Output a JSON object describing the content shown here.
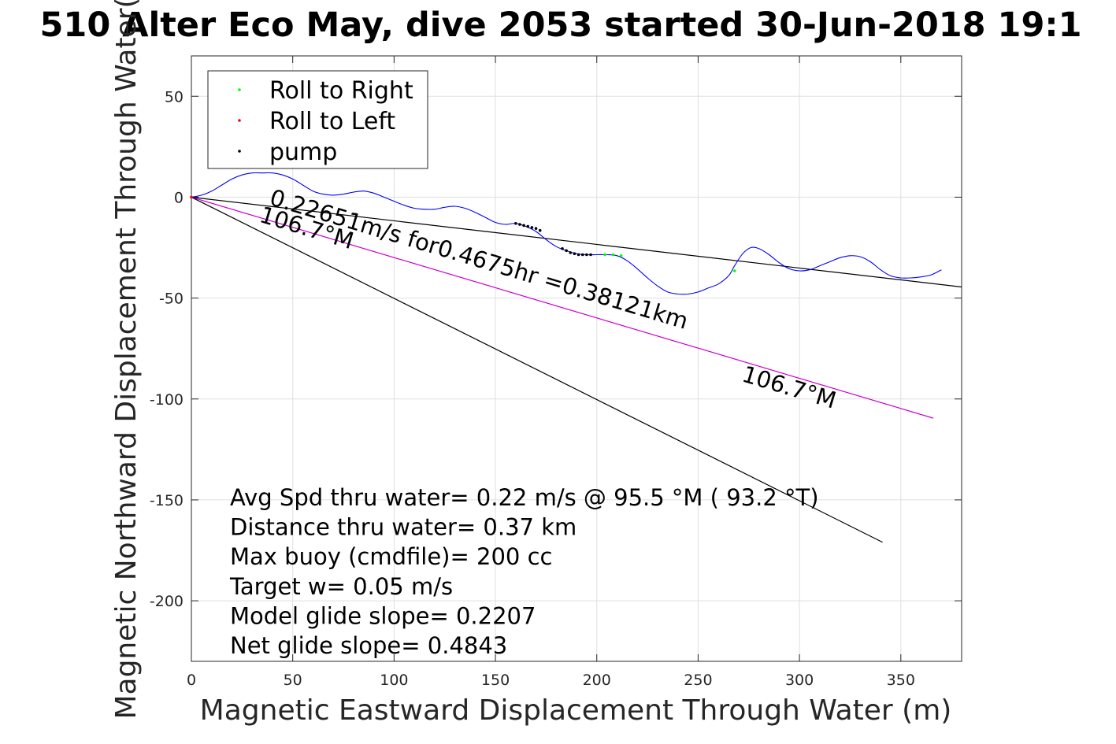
{
  "chart_data": {
    "type": "line",
    "title": "510 Alter Eco May, dive 2053 started 30-Jun-2018 19:1",
    "xlabel": "Magnetic Eastward Displacement Through Water (m)",
    "ylabel": "Magnetic Northward Displacement Through Water(",
    "xlim": [
      0,
      380
    ],
    "ylim": [
      -230,
      70
    ],
    "grid": true,
    "xticks": [
      0,
      50,
      100,
      150,
      200,
      250,
      300,
      350
    ],
    "yticks": [
      50,
      0,
      -50,
      -100,
      -150,
      -200
    ],
    "xtick_labels": [
      "0",
      "50",
      "100",
      "150",
      "200",
      "250",
      "300",
      "350"
    ],
    "ytick_labels": [
      "50",
      "0",
      "-50",
      "-100",
      "-150",
      "-200"
    ],
    "legend": {
      "placement": "top-left",
      "entries": [
        {
          "label": "Roll to Right",
          "color": "#00ff00"
        },
        {
          "label": "Roll to Left",
          "color": "#ff0000"
        },
        {
          "label": "pump",
          "color": "#000000"
        }
      ]
    },
    "track": {
      "color": "#0000ff",
      "x": [
        0,
        5,
        10,
        15,
        20,
        25,
        30,
        35,
        40,
        45,
        50,
        55,
        60,
        65,
        70,
        75,
        80,
        85,
        90,
        95,
        100,
        105,
        110,
        115,
        120,
        125,
        130,
        135,
        140,
        145,
        150,
        155,
        160,
        165,
        170,
        175,
        180,
        185,
        190,
        195,
        200,
        205,
        210,
        215,
        220,
        225,
        230,
        235,
        240,
        245,
        250,
        255,
        260,
        265,
        268,
        272,
        276,
        280,
        285,
        290,
        295,
        300,
        305,
        310,
        315,
        320,
        325,
        330,
        335,
        340,
        345,
        350,
        355,
        360,
        365,
        370
      ],
      "y": [
        0,
        1,
        3,
        6,
        9,
        11,
        12,
        12,
        12,
        11,
        9,
        6,
        3,
        1.5,
        1,
        1.5,
        2.5,
        3,
        2,
        0,
        -2,
        -4,
        -5.5,
        -6,
        -6,
        -5,
        -4.5,
        -5.5,
        -7.5,
        -10,
        -12.5,
        -13.5,
        -13,
        -14.5,
        -17,
        -21,
        -24.5,
        -26.5,
        -28,
        -28.5,
        -28.5,
        -28.5,
        -29,
        -31.5,
        -35.5,
        -40,
        -44,
        -47,
        -48,
        -48,
        -47,
        -45,
        -43,
        -39,
        -34,
        -28,
        -25,
        -25.5,
        -28.5,
        -32.5,
        -35.5,
        -36.5,
        -36,
        -34,
        -32,
        -30,
        -29,
        -29.5,
        -32,
        -36,
        -39,
        -40,
        -40,
        -39.5,
        -38.5,
        -36
      ]
    },
    "pump_points": {
      "color": "#000000",
      "x": [
        160,
        162,
        164,
        166,
        168,
        170,
        172,
        183,
        185,
        187,
        189,
        191,
        193,
        195,
        197
      ],
      "y": [
        -13,
        -13.5,
        -14,
        -14.5,
        -15,
        -15.5,
        -16.5,
        -25.5,
        -26.5,
        -27.5,
        -28,
        -28.5,
        -28.5,
        -28.5,
        -28.5
      ]
    },
    "roll_right_points": {
      "color": "#00ff00",
      "x": [
        204,
        208,
        212,
        268
      ],
      "y": [
        -28.5,
        -28.5,
        -29,
        -36.5
      ]
    },
    "roll_left_points": {
      "color": "#ff0000",
      "x": [
        0
      ],
      "y": [
        0
      ]
    },
    "lines": [
      {
        "x": [
          0,
          380
        ],
        "y": [
          0,
          -44.5
        ],
        "color": "#000000"
      },
      {
        "x": [
          0,
          366
        ],
        "y": [
          0,
          -109.5
        ],
        "color": "#cc00cc"
      },
      {
        "x": [
          0,
          341
        ],
        "y": [
          0,
          -171
        ],
        "color": "#000000"
      }
    ],
    "annotations": [
      {
        "text": "0.22651m/s for0.4675hr =0.38121km",
        "x": 38,
        "y": -3.5,
        "angle": 16.7
      },
      {
        "text": "106.7°M",
        "x": 33,
        "y": -12,
        "angle": 16.7
      },
      {
        "text": "106.7°M",
        "x": 271,
        "y": -91,
        "angle": 16.7
      }
    ],
    "stats": [
      "Avg Spd thru water=  0.22 m/s @  95.5 °M ( 93.2 °T)",
      "Distance thru water=  0.37 km",
      "Max buoy (cmdfile)= 200 cc",
      "Target w= 0.05 m/s",
      "Model glide slope= 0.2207",
      "Net glide slope= 0.4843"
    ]
  }
}
